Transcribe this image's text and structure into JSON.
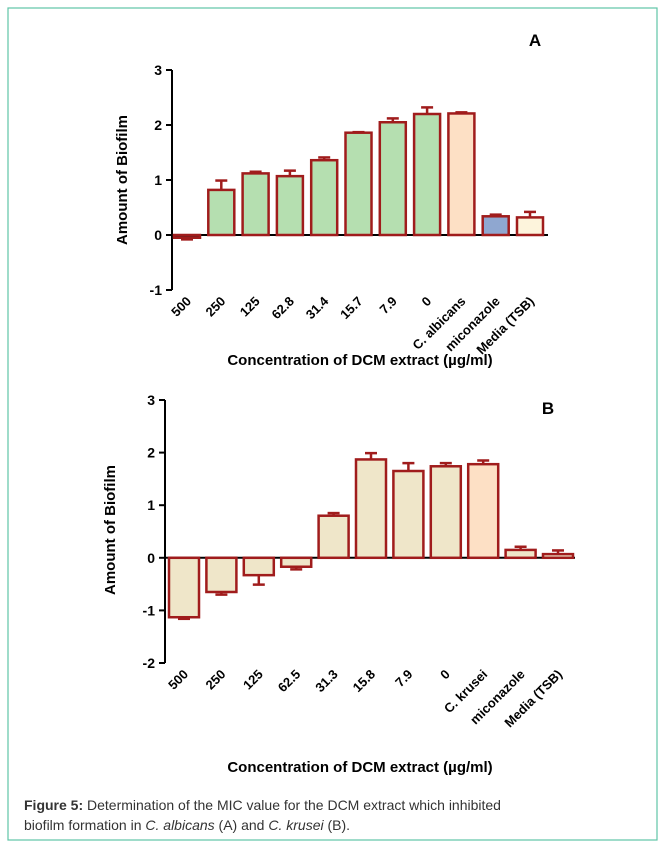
{
  "chart_data": [
    {
      "type": "bar",
      "panel": "A",
      "y_label": "Amount of Biofilm",
      "x_label": "Concentration of DCM extract (µg/ml)",
      "categories": [
        "500",
        "250",
        "125",
        "62.8",
        "31.4",
        "15.7",
        "7.9",
        "0",
        "C. albicans",
        "miconazole",
        "Media (TSB)"
      ],
      "values": [
        -0.05,
        0.82,
        1.12,
        1.07,
        1.36,
        1.86,
        2.05,
        2.2,
        2.21,
        0.34,
        0.32
      ],
      "errors": [
        0.03,
        0.17,
        0.03,
        0.1,
        0.05,
        0.01,
        0.07,
        0.12,
        0.02,
        0.03,
        0.1
      ],
      "colors": [
        "#222222",
        "#b5dfb0",
        "#b5dfb0",
        "#b5dfb0",
        "#b5dfb0",
        "#b5dfb0",
        "#b5dfb0",
        "#b5dfb0",
        "#fde0c5",
        "#8fa7d0",
        "#fdf4dc"
      ],
      "edge_color": "#a01c1c",
      "ylim": [
        -1,
        3
      ],
      "yticks": [
        -1,
        0,
        1,
        2,
        3
      ]
    },
    {
      "type": "bar",
      "panel": "B",
      "y_label": "Amount of Biofilm",
      "x_label": "Concentration of DCM extract (µg/ml)",
      "categories": [
        "500",
        "250",
        "125",
        "62.5",
        "31.3",
        "15.8",
        "7.9",
        "0",
        "C. krusei",
        "miconazole",
        "Media (TSB)"
      ],
      "values": [
        -1.13,
        -0.65,
        -0.33,
        -0.17,
        0.8,
        1.87,
        1.65,
        1.74,
        1.78,
        0.15,
        0.07
      ],
      "errors": [
        0.03,
        0.05,
        0.18,
        0.05,
        0.05,
        0.12,
        0.15,
        0.06,
        0.07,
        0.06,
        0.07
      ],
      "colors": [
        "#efe6c9",
        "#efe6c9",
        "#efe6c9",
        "#efe6c9",
        "#efe6c9",
        "#efe6c9",
        "#efe6c9",
        "#efe6c9",
        "#fde0c5",
        "#efe6c9",
        "#efe6c9"
      ],
      "edge_color": "#a01c1c",
      "ylim": [
        -2,
        3
      ],
      "yticks": [
        -2,
        -1,
        0,
        1,
        2,
        3
      ]
    }
  ],
  "caption": {
    "lines": [
      [
        {
          "text": "Figure 5:",
          "style": "bold"
        },
        {
          "text": " Determination of the MIC value for the DCM extract which inhibited",
          "style": "normal"
        }
      ],
      [
        {
          "text": "biofilm formation in ",
          "style": "normal"
        },
        {
          "text": "C. albicans",
          "style": "italic"
        },
        {
          "text": " (A) and ",
          "style": "normal"
        },
        {
          "text": "C. krusei",
          "style": "italic"
        },
        {
          "text": " (B).",
          "style": "normal"
        }
      ]
    ]
  }
}
